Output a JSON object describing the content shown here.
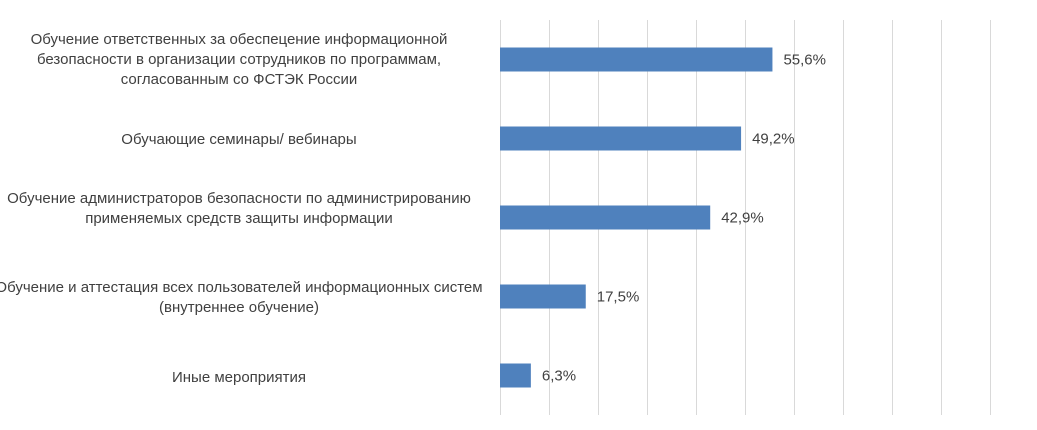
{
  "chart_data": {
    "type": "bar",
    "orientation": "horizontal",
    "categories": [
      "Обучение ответственных за обеспецение информационной безопасности в организации сотрудников по программам, согласованным со ФСТЭК России",
      "Обучающие семинары/ вебинары",
      "Обучение администраторов безопасности по администрированию применяемых средств защиты информации",
      "Обучение и аттестация всех пользователей информационных систем (внутреннее обучение)",
      "Иные мероприятия"
    ],
    "values": [
      55.6,
      49.2,
      42.9,
      17.5,
      6.3
    ],
    "data_labels": [
      "55,6%",
      "49,2%",
      "42,9%",
      "17,5%",
      "6,3%"
    ],
    "xlim": [
      0,
      100
    ],
    "grid": true,
    "colors": {
      "bar": "#4f81bd",
      "grid": "#d9d9d9",
      "text": "#404040"
    }
  }
}
